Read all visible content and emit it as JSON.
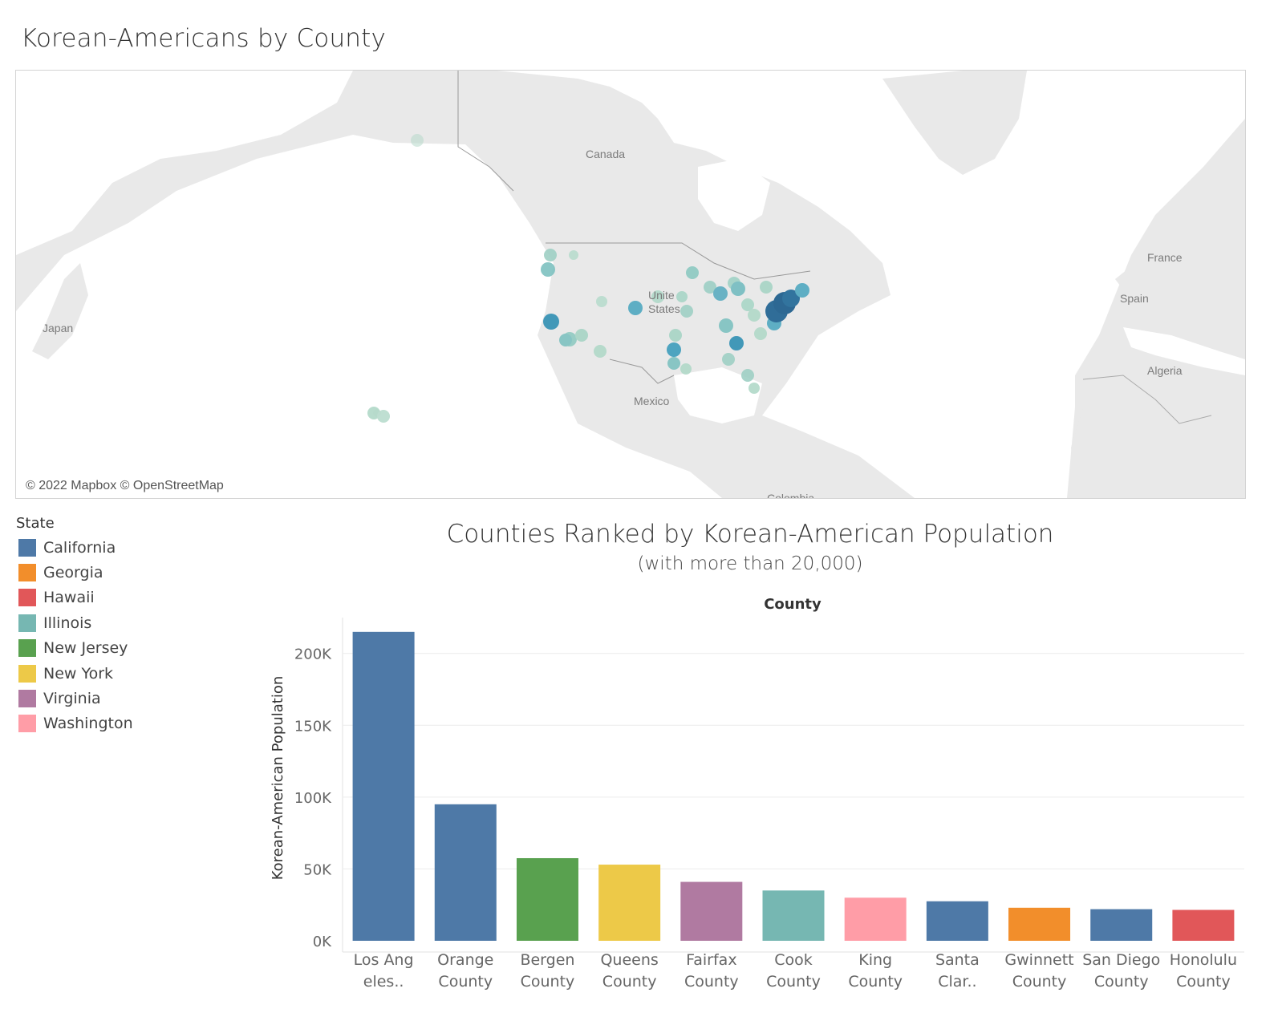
{
  "dashboard": {
    "title": "Korean-Americans by County"
  },
  "map": {
    "credit": "© 2022 Mapbox © OpenStreetMap",
    "labels": {
      "canada": "Canada",
      "united_states_line1": "Unite",
      "united_states_line2": "States",
      "mexico": "Mexico",
      "japan": "Japan",
      "france": "France",
      "spain": "Spain",
      "algeria": "Algeria",
      "colombia": "Colombia"
    }
  },
  "legend": {
    "title": "State",
    "items": [
      {
        "label": "California",
        "color": "#4e79a7"
      },
      {
        "label": "Georgia",
        "color": "#f28e2b"
      },
      {
        "label": "Hawaii",
        "color": "#e15759"
      },
      {
        "label": "Illinois",
        "color": "#76b7b2"
      },
      {
        "label": "New Jersey",
        "color": "#59a14f"
      },
      {
        "label": "New York",
        "color": "#edc948"
      },
      {
        "label": "Virginia",
        "color": "#b07aa1"
      },
      {
        "label": "Washington",
        "color": "#ff9da7"
      }
    ]
  },
  "chart_data": {
    "type": "bar",
    "title": "Counties Ranked by Korean-American Population",
    "subtitle": "(with more than 20,000)",
    "column_header": "County",
    "ylabel": "Korean-American Population",
    "ylim": [
      0,
      220000
    ],
    "yticks": [
      0,
      50000,
      100000,
      150000,
      200000
    ],
    "ytick_labels": [
      "0K",
      "50K",
      "100K",
      "150K",
      "200K"
    ],
    "grid": true,
    "categories": [
      [
        "Los Ang",
        "eles.."
      ],
      [
        "Orange",
        "County"
      ],
      [
        "Bergen",
        "County"
      ],
      [
        "Queens",
        "County"
      ],
      [
        "Fairfax",
        "County"
      ],
      [
        "Cook",
        "County"
      ],
      [
        "King",
        "County"
      ],
      [
        "Santa",
        "Clar.."
      ],
      [
        "Gwinnett",
        "County"
      ],
      [
        "San Diego",
        "County"
      ],
      [
        "Honolulu",
        "County"
      ]
    ],
    "states": [
      "California",
      "California",
      "New Jersey",
      "New York",
      "Virginia",
      "Illinois",
      "Washington",
      "California",
      "Georgia",
      "California",
      "Hawaii"
    ],
    "values": [
      215000,
      95000,
      57500,
      53000,
      41000,
      35000,
      30000,
      27500,
      23000,
      22000,
      21500
    ]
  }
}
